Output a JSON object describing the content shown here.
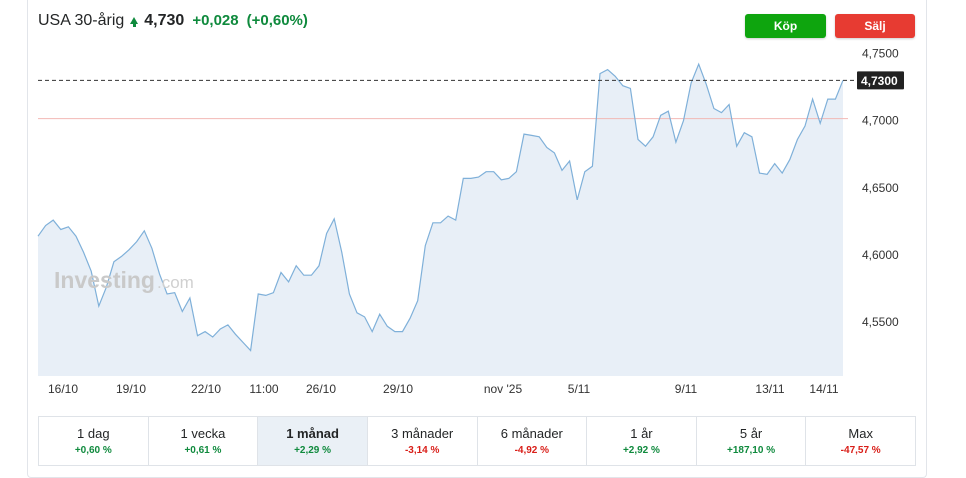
{
  "header": {
    "title": "USA 30-årig",
    "price": "4,730",
    "change": "+0,028",
    "change_pct": "(+0,60%)"
  },
  "buttons": {
    "buy": "Köp",
    "sell": "Sälj"
  },
  "watermark": {
    "brand": "Investing",
    "suffix": ".com"
  },
  "colors": {
    "up": "#0f8a3d",
    "down": "#d91e18",
    "line": "#7fb0d9",
    "area": "#e8eff7",
    "buy": "#0ea50e",
    "sell": "#e73b32",
    "reference_line": "#f2b8b5"
  },
  "chart_data": {
    "type": "area",
    "title": "",
    "xlabel": "",
    "ylabel": "",
    "ylim": [
      4.51,
      4.76
    ],
    "y_ticks": [
      "4,5500",
      "4,6000",
      "4,6500",
      "4,7000",
      "4,7500"
    ],
    "x_ticks": [
      "16/10",
      "19/10",
      "22/10",
      "11:00",
      "26/10",
      "29/10",
      "nov '25",
      "5/11",
      "9/11",
      "13/11",
      "14/11"
    ],
    "current_value_label": "4,7300",
    "current_value": 4.73,
    "reference_value": 4.7015,
    "grid": false,
    "legend": "none",
    "values": [
      4.614,
      4.622,
      4.626,
      4.619,
      4.621,
      4.614,
      4.602,
      4.588,
      4.562,
      4.576,
      4.595,
      4.599,
      4.604,
      4.61,
      4.618,
      4.605,
      4.586,
      4.571,
      4.572,
      4.558,
      4.568,
      4.54,
      4.543,
      4.539,
      4.545,
      4.548,
      4.541,
      4.535,
      4.529,
      4.571,
      4.57,
      4.572,
      4.587,
      4.58,
      4.592,
      4.585,
      4.585,
      4.592,
      4.616,
      4.627,
      4.602,
      4.571,
      4.557,
      4.554,
      4.543,
      4.556,
      4.547,
      4.543,
      4.543,
      4.553,
      4.566,
      4.607,
      4.624,
      4.624,
      4.629,
      4.626,
      4.657,
      4.657,
      4.658,
      4.662,
      4.662,
      4.656,
      4.657,
      4.662,
      4.69,
      4.689,
      4.688,
      4.68,
      4.676,
      4.663,
      4.67,
      4.641,
      4.662,
      4.666,
      4.735,
      4.738,
      4.733,
      4.726,
      4.724,
      4.686,
      4.681,
      4.688,
      4.704,
      4.707,
      4.684,
      4.7,
      4.728,
      4.742,
      4.727,
      4.709,
      4.706,
      4.712,
      4.681,
      4.691,
      4.688,
      4.661,
      4.66,
      4.668,
      4.661,
      4.671,
      4.686,
      4.696,
      4.716,
      4.698,
      4.716,
      4.716,
      4.73
    ]
  },
  "ranges": [
    {
      "label": "1 dag",
      "value": "+0,60 %",
      "dir": "pos",
      "active": false
    },
    {
      "label": "1 vecka",
      "value": "+0,61 %",
      "dir": "pos",
      "active": false
    },
    {
      "label": "1 månad",
      "value": "+2,29 %",
      "dir": "pos",
      "active": true
    },
    {
      "label": "3 månader",
      "value": "-3,14 %",
      "dir": "neg",
      "active": false
    },
    {
      "label": "6 månader",
      "value": "-4,92 %",
      "dir": "neg",
      "active": false
    },
    {
      "label": "1 år",
      "value": "+2,92 %",
      "dir": "pos",
      "active": false
    },
    {
      "label": "5 år",
      "value": "+187,10 %",
      "dir": "pos",
      "active": false
    },
    {
      "label": "Max",
      "value": "-47,57 %",
      "dir": "neg",
      "active": false
    }
  ]
}
